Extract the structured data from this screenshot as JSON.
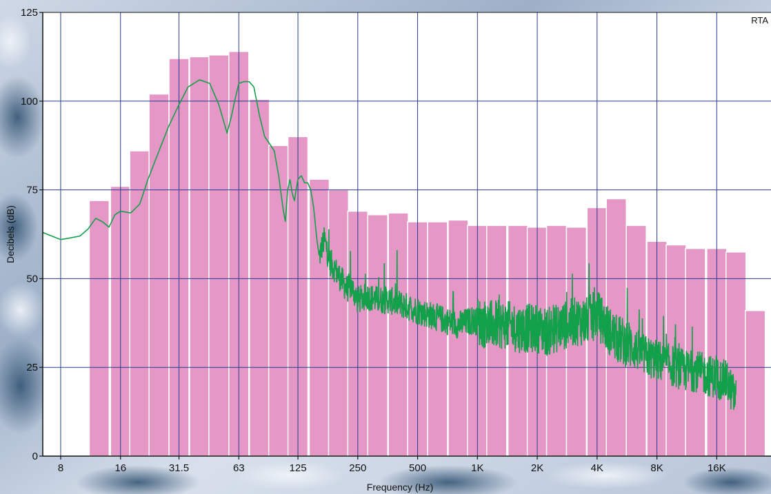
{
  "chart_data": {
    "type": "bar",
    "title": "",
    "corner_label": "RTA",
    "xlabel": "Frequency (Hz)",
    "ylabel": "Decibels (dB)",
    "ylim": [
      0,
      125
    ],
    "x_scale": "log",
    "xlim": [
      6.5,
      30000
    ],
    "y_ticks": [
      0,
      25,
      50,
      75,
      100,
      125
    ],
    "x_ticks": [
      {
        "value": 8,
        "label": "8"
      },
      {
        "value": 16,
        "label": "16"
      },
      {
        "value": 31.5,
        "label": "31.5"
      },
      {
        "value": 63,
        "label": "63"
      },
      {
        "value": 125,
        "label": "125"
      },
      {
        "value": 250,
        "label": "250"
      },
      {
        "value": 500,
        "label": "500"
      },
      {
        "value": 1000,
        "label": "1K"
      },
      {
        "value": 2000,
        "label": "2K"
      },
      {
        "value": 4000,
        "label": "4K"
      },
      {
        "value": 8000,
        "label": "8K"
      },
      {
        "value": 16000,
        "label": "16K"
      },
      {
        "value": 32000,
        "label": ""
      }
    ],
    "grid": true,
    "categories": [
      "12.5",
      "16",
      "20",
      "25",
      "31.5",
      "40",
      "50",
      "63",
      "80",
      "100",
      "125",
      "160",
      "200",
      "250",
      "315",
      "400",
      "500",
      "630",
      "800",
      "1000",
      "1250",
      "1600",
      "2000",
      "2500",
      "3150",
      "4000",
      "5000",
      "6300",
      "8000",
      "10000",
      "12500",
      "16000",
      "20000",
      "25000"
    ],
    "series": [
      {
        "type": "bar",
        "values": [
          72,
          76,
          86,
          102,
          112,
          112.5,
          113,
          114,
          100.5,
          87.5,
          90,
          78,
          75,
          69,
          68,
          68.5,
          66,
          66,
          66.5,
          65,
          65,
          65,
          64.5,
          65,
          64.5,
          70,
          72.5,
          65,
          60.5,
          59.5,
          58.5,
          58.5,
          57.5,
          41
        ]
      },
      {
        "type": "line",
        "x": [
          6.5,
          8,
          9,
          10,
          11,
          12,
          13,
          14,
          15,
          16,
          18,
          20,
          22,
          25,
          28,
          31.5,
          35,
          40,
          45,
          50,
          55,
          58,
          60,
          63,
          67,
          71,
          75,
          80,
          85,
          90,
          95,
          100,
          105,
          108,
          111,
          114,
          117,
          120,
          125,
          130,
          135,
          140,
          145,
          150,
          155,
          160,
          165,
          170,
          180,
          190,
          200,
          210,
          220,
          230,
          240,
          250,
          280,
          315,
          355,
          400,
          450,
          500,
          560,
          630,
          710,
          800,
          900,
          1000,
          1120,
          1250,
          1400,
          1600,
          1800,
          2000,
          2240,
          2500,
          2800,
          3150,
          3550,
          4000,
          4500,
          5000,
          5600,
          6300,
          7100,
          8000,
          9000,
          10000,
          11200,
          12500,
          14000,
          16000,
          18000,
          20000
        ],
        "values": [
          63,
          61,
          61.5,
          62,
          64,
          67,
          66,
          64.5,
          68,
          69,
          68.5,
          71,
          78,
          86,
          93,
          99,
          104,
          106,
          105,
          99,
          91,
          96,
          100,
          105,
          105.5,
          105.5,
          104,
          96,
          90,
          88,
          86,
          79,
          70,
          66,
          75,
          78,
          74,
          72,
          78,
          79,
          77,
          77,
          75,
          70,
          62,
          56,
          59,
          61,
          55,
          53,
          51,
          49,
          47,
          48,
          46,
          44,
          45,
          44,
          44,
          43,
          42,
          41,
          40,
          39,
          38,
          37,
          38,
          38,
          37,
          37,
          37,
          36,
          36,
          36,
          35,
          36,
          37,
          38,
          38,
          40,
          36,
          33,
          32,
          30,
          28,
          27,
          26,
          25,
          24,
          24,
          23,
          22,
          21,
          16
        ]
      }
    ]
  }
}
